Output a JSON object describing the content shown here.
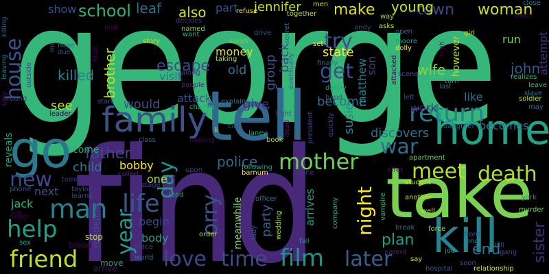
{
  "words": [
    {
      "text": "george",
      "color": "#35b779"
    },
    {
      "text": "find",
      "color": "#482878"
    },
    {
      "text": "take",
      "color": "#7ad151"
    },
    {
      "text": "tell",
      "color": "#31688e"
    },
    {
      "text": "home",
      "color": "#20a386"
    },
    {
      "text": "kill",
      "color": "#26828e"
    },
    {
      "text": "go",
      "color": "#2a788e"
    },
    {
      "text": "family",
      "color": "#3b528b"
    },
    {
      "text": "return",
      "color": "#26828e"
    },
    {
      "text": "friend",
      "color": "#bddf26"
    },
    {
      "text": "man",
      "color": "#26828e"
    },
    {
      "text": "help",
      "color": "#1fa188"
    },
    {
      "text": "life",
      "color": "#38588c"
    },
    {
      "text": "love",
      "color": "#3e4989"
    },
    {
      "text": "time",
      "color": "#3e4a89"
    },
    {
      "text": "film",
      "color": "#21918c"
    },
    {
      "text": "later",
      "color": "#35608d"
    },
    {
      "text": "death",
      "color": "#b5de2b"
    },
    {
      "text": "meet",
      "color": "#b5de2b"
    },
    {
      "text": "mother",
      "color": "#6ece58"
    },
    {
      "text": "war",
      "color": "#2e6e8e"
    },
    {
      "text": "house",
      "color": "#3b528b"
    },
    {
      "text": "school",
      "color": "#2db27d"
    },
    {
      "text": "try",
      "color": "#3b528b"
    },
    {
      "text": "get",
      "color": "#3b528b"
    },
    {
      "text": "day",
      "color": "#21918c"
    },
    {
      "text": "year",
      "color": "#1f9e89"
    },
    {
      "text": "father",
      "color": "#3f4788"
    },
    {
      "text": "new",
      "color": "#3f4788"
    },
    {
      "text": "orry",
      "color": "#39568c"
    },
    {
      "text": "night",
      "color": "#fde725"
    },
    {
      "text": "plan",
      "color": "#1f9e89"
    },
    {
      "text": "end",
      "color": "#2c738e"
    },
    {
      "text": "sister",
      "color": "#472d7b"
    },
    {
      "text": "woman",
      "color": "#c8e020"
    },
    {
      "text": "town",
      "color": "#3f4788"
    },
    {
      "text": "make",
      "color": "#dde318"
    },
    {
      "text": "jennifer",
      "color": "#c8e020"
    },
    {
      "text": "young",
      "color": "#c8e020"
    },
    {
      "text": "also",
      "color": "#d8e219"
    },
    {
      "text": "leaf",
      "color": "#2d718e"
    },
    {
      "text": "show",
      "color": "#3b528b"
    },
    {
      "text": "part",
      "color": "#3b528b"
    },
    {
      "text": "escape",
      "color": "#3e4c8a"
    },
    {
      "text": "killed",
      "color": "#26828e"
    },
    {
      "text": "brother",
      "color": "#c2df23"
    },
    {
      "text": "john",
      "color": "#37598c"
    },
    {
      "text": "wife",
      "color": "#84d44b"
    },
    {
      "text": "police",
      "color": "#31688e"
    },
    {
      "text": "group",
      "color": "#3b528b"
    },
    {
      "text": "back",
      "color": "#3f4788"
    },
    {
      "text": "state",
      "color": "#fde725"
    },
    {
      "text": "become",
      "color": "#2e6f8e"
    },
    {
      "text": "susie",
      "color": "#24868e"
    },
    {
      "text": "son",
      "color": "#433e85"
    },
    {
      "text": "matthew",
      "color": "#25848e"
    },
    {
      "text": "discovers",
      "color": "#2c728e"
    },
    {
      "text": "work",
      "color": "#482071"
    },
    {
      "text": "like",
      "color": "#2c738e"
    },
    {
      "text": "becomes",
      "color": "#2a788e"
    },
    {
      "text": "attempt",
      "color": "#472f7d"
    },
    {
      "text": "however",
      "color": "#c2df23"
    },
    {
      "text": "run",
      "color": "#7ad151"
    },
    {
      "text": "party",
      "color": "#34618d"
    },
    {
      "text": "arrives",
      "color": "#1f9a8a"
    },
    {
      "text": "meanwhile",
      "color": "#7ad151"
    },
    {
      "text": "begin",
      "color": "#3f4788"
    },
    {
      "text": "body",
      "color": "#1fa188"
    },
    {
      "text": "one",
      "color": "#a5db36"
    },
    {
      "text": "bobby",
      "color": "#fde725"
    },
    {
      "text": "child",
      "color": "#2a788e"
    },
    {
      "text": "come",
      "color": "#22a884"
    },
    {
      "text": "next",
      "color": "#3b528b"
    },
    {
      "text": "jack",
      "color": "#2db27d"
    },
    {
      "text": "reveals",
      "color": "#20a386"
    },
    {
      "text": "see",
      "color": "#bddf26"
    },
    {
      "text": "would",
      "color": "#3b528b"
    },
    {
      "text": "give",
      "color": "#482878"
    },
    {
      "text": "attack",
      "color": "#3b528b"
    },
    {
      "text": "money",
      "color": "#d8e219"
    },
    {
      "text": "old",
      "color": "#2c728e"
    },
    {
      "text": "visit",
      "color": "#2e6e8e"
    },
    {
      "text": "madeline",
      "color": "#3e4a89"
    },
    {
      "text": "stop",
      "color": "#b5de2b"
    },
    {
      "text": "blood",
      "color": "#440154"
    },
    {
      "text": "move",
      "color": "#20a386"
    },
    {
      "text": "arrive",
      "color": "#481a6c"
    },
    {
      "text": "world",
      "color": "#2c728e"
    },
    {
      "text": "place",
      "color": "#433e85"
    },
    {
      "text": "killing",
      "color": "#33638d"
    },
    {
      "text": "mr",
      "color": "#33638d"
    },
    {
      "text": "hope",
      "color": "#2e6e8e"
    },
    {
      "text": "due",
      "color": "#3e4c8a"
    },
    {
      "text": "look",
      "color": "#440154"
    },
    {
      "text": "story",
      "color": "#bddf26"
    },
    {
      "text": "local",
      "color": "#440154"
    },
    {
      "text": "sarah",
      "color": "#6ece58"
    },
    {
      "text": "named",
      "color": "#a0da39"
    },
    {
      "text": "want",
      "color": "#2db27d"
    },
    {
      "text": "taking",
      "color": "#bddf26"
    },
    {
      "text": "along",
      "color": "#433e85"
    },
    {
      "text": "people",
      "color": "#472c7a"
    },
    {
      "text": "explains",
      "color": "#2a788e"
    },
    {
      "text": "charles",
      "color": "#2db27d"
    },
    {
      "text": "car",
      "color": "#37598c"
    },
    {
      "text": "decides",
      "color": "#46307e"
    },
    {
      "text": "refuse",
      "color": "#f1e51d"
    },
    {
      "text": "drive",
      "color": "#3b528b"
    },
    {
      "text": "secret",
      "color": "#2d708e"
    },
    {
      "text": "together",
      "color": "#c2df23"
    },
    {
      "text": "eventually",
      "color": "#31688e"
    },
    {
      "text": "finally",
      "color": "#2d708e"
    },
    {
      "text": "set",
      "color": "#fde725"
    },
    {
      "text": "men",
      "color": "#c2df23"
    },
    {
      "text": "andy",
      "color": "#3f4788"
    },
    {
      "text": "way",
      "color": "#a0da39"
    },
    {
      "text": "asks",
      "color": "#c8e020"
    },
    {
      "text": "open",
      "color": "#31688e"
    },
    {
      "text": "moore",
      "color": "#1fa188"
    },
    {
      "text": "dolly",
      "color": "#fde725"
    },
    {
      "text": "girl",
      "color": "#c2df23"
    },
    {
      "text": "high",
      "color": "#440154"
    },
    {
      "text": "close",
      "color": "#26828e"
    },
    {
      "text": "away",
      "color": "#440154"
    },
    {
      "text": "realizes",
      "color": "#2db27d"
    },
    {
      "text": "leave",
      "color": "#35b779"
    },
    {
      "text": "slave",
      "color": "#2a788e"
    },
    {
      "text": "soldier",
      "color": "#b5de2b"
    },
    {
      "text": "may",
      "color": "#2e6e8e"
    },
    {
      "text": "daughter",
      "color": "#31688e"
    },
    {
      "text": "apartment",
      "color": "#6ece58"
    },
    {
      "text": "student",
      "color": "#c2df23"
    },
    {
      "text": "another",
      "color": "#c2df23"
    },
    {
      "text": "york",
      "color": "#26828e"
    },
    {
      "text": "murder",
      "color": "#6ece58"
    },
    {
      "text": "offer",
      "color": "#481a6c"
    },
    {
      "text": "break",
      "color": "#31688e"
    },
    {
      "text": "force",
      "color": "#a0da39"
    },
    {
      "text": "front",
      "color": "#3f4788"
    },
    {
      "text": "long",
      "color": "#26828e"
    },
    {
      "text": "bill",
      "color": "#3e4989"
    },
    {
      "text": "gang",
      "color": "#3e4989"
    },
    {
      "text": "joe",
      "color": "#1f9e89"
    },
    {
      "text": "soon",
      "color": "#3b528b"
    },
    {
      "text": "hospital",
      "color": "#39568c"
    },
    {
      "text": "relationship",
      "color": "#d8e219"
    },
    {
      "text": "say",
      "color": "#c2df23"
    },
    {
      "text": "parent",
      "color": "#482878"
    },
    {
      "text": "vampire",
      "color": "#2db27d"
    },
    {
      "text": "well",
      "color": "#c8e020"
    },
    {
      "text": "scene",
      "color": "#3b528b"
    },
    {
      "text": "attacked",
      "color": "#440154"
    },
    {
      "text": "left",
      "color": "#3e4989"
    },
    {
      "text": "hand",
      "color": "#3b528b"
    },
    {
      "text": "danny",
      "color": "#20a386"
    },
    {
      "text": "president",
      "color": "#3e4989"
    },
    {
      "text": "quickly",
      "color": "#3e4989"
    },
    {
      "text": "fight",
      "color": "#3b528b"
    },
    {
      "text": "dead",
      "color": "#481a6c"
    },
    {
      "text": "book",
      "color": "#bddf26"
    },
    {
      "text": "laney",
      "color": "#1fa188"
    },
    {
      "text": "city",
      "color": "#39568c"
    },
    {
      "text": "following",
      "color": "#1fa188"
    },
    {
      "text": "barnum",
      "color": "#fde725"
    },
    {
      "text": "diane",
      "color": "#46307e"
    },
    {
      "text": "officer",
      "color": "#2c728e"
    },
    {
      "text": "lady",
      "color": "#3b528b"
    },
    {
      "text": "wedding",
      "color": "#b5de2b"
    },
    {
      "text": "fall",
      "color": "#1f9a8a"
    },
    {
      "text": "company",
      "color": "#20a386"
    },
    {
      "text": "order",
      "color": "#bddf26"
    },
    {
      "text": "control",
      "color": "#481a6c"
    },
    {
      "text": "upon",
      "color": "#3f4788"
    },
    {
      "text": "lead",
      "color": "#20a386"
    },
    {
      "text": "stage",
      "color": "#433e85"
    },
    {
      "text": "li",
      "color": "#fde725"
    },
    {
      "text": "making",
      "color": "#440154"
    },
    {
      "text": "class",
      "color": "#31688e"
    },
    {
      "text": "called",
      "color": "#482878"
    },
    {
      "text": "tommy",
      "color": "#46307e"
    },
    {
      "text": "taylor",
      "color": "#3e4989"
    },
    {
      "text": "learns",
      "color": "#3e4989"
    },
    {
      "text": "phone",
      "color": "#3b528b"
    },
    {
      "text": "big",
      "color": "#440154"
    },
    {
      "text": "never",
      "color": "#440154"
    },
    {
      "text": "sex",
      "color": "#20a386"
    },
    {
      "text": "leaving",
      "color": "#26828e"
    },
    {
      "text": "outside",
      "color": "#3f4788"
    },
    {
      "text": "around",
      "color": "#3f4788"
    },
    {
      "text": "leader",
      "color": "#440154"
    },
    {
      "text": "start",
      "color": "#3e4989"
    },
    {
      "text": "turn",
      "color": "#1fa188"
    },
    {
      "text": "last",
      "color": "#33638d"
    },
    {
      "text": "billy",
      "color": "#440154"
    }
  ]
}
